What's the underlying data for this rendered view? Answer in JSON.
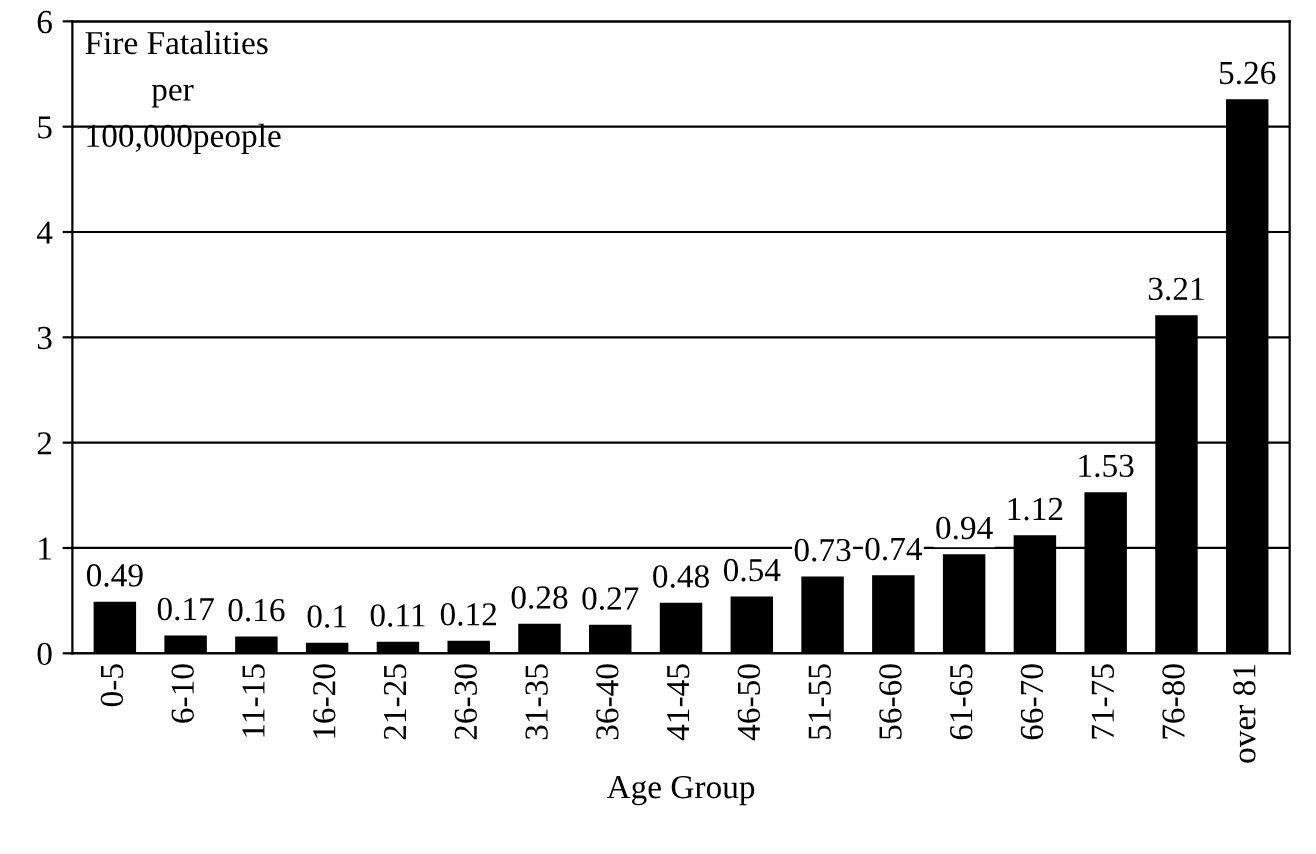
{
  "chart_data": {
    "type": "bar",
    "categories": [
      "0-5",
      "6-10",
      "11-15",
      "16-20",
      "21-25",
      "26-30",
      "31-35",
      "36-40",
      "41-45",
      "46-50",
      "51-55",
      "56-60",
      "61-65",
      "66-70",
      "71-75",
      "76-80",
      "over 81"
    ],
    "values": [
      0.49,
      0.17,
      0.16,
      0.1,
      0.11,
      0.12,
      0.28,
      0.27,
      0.48,
      0.54,
      0.73,
      0.74,
      0.94,
      1.12,
      1.53,
      3.21,
      5.26
    ],
    "color": "#000000",
    "xlabel": "Age Group",
    "ylabel": "Fire Fatalities\n        per\n100,000people",
    "ylim": [
      0,
      6
    ],
    "yticks": [
      0,
      1,
      2,
      3,
      4,
      5,
      6
    ],
    "grid": "y",
    "data_labels": true
  }
}
